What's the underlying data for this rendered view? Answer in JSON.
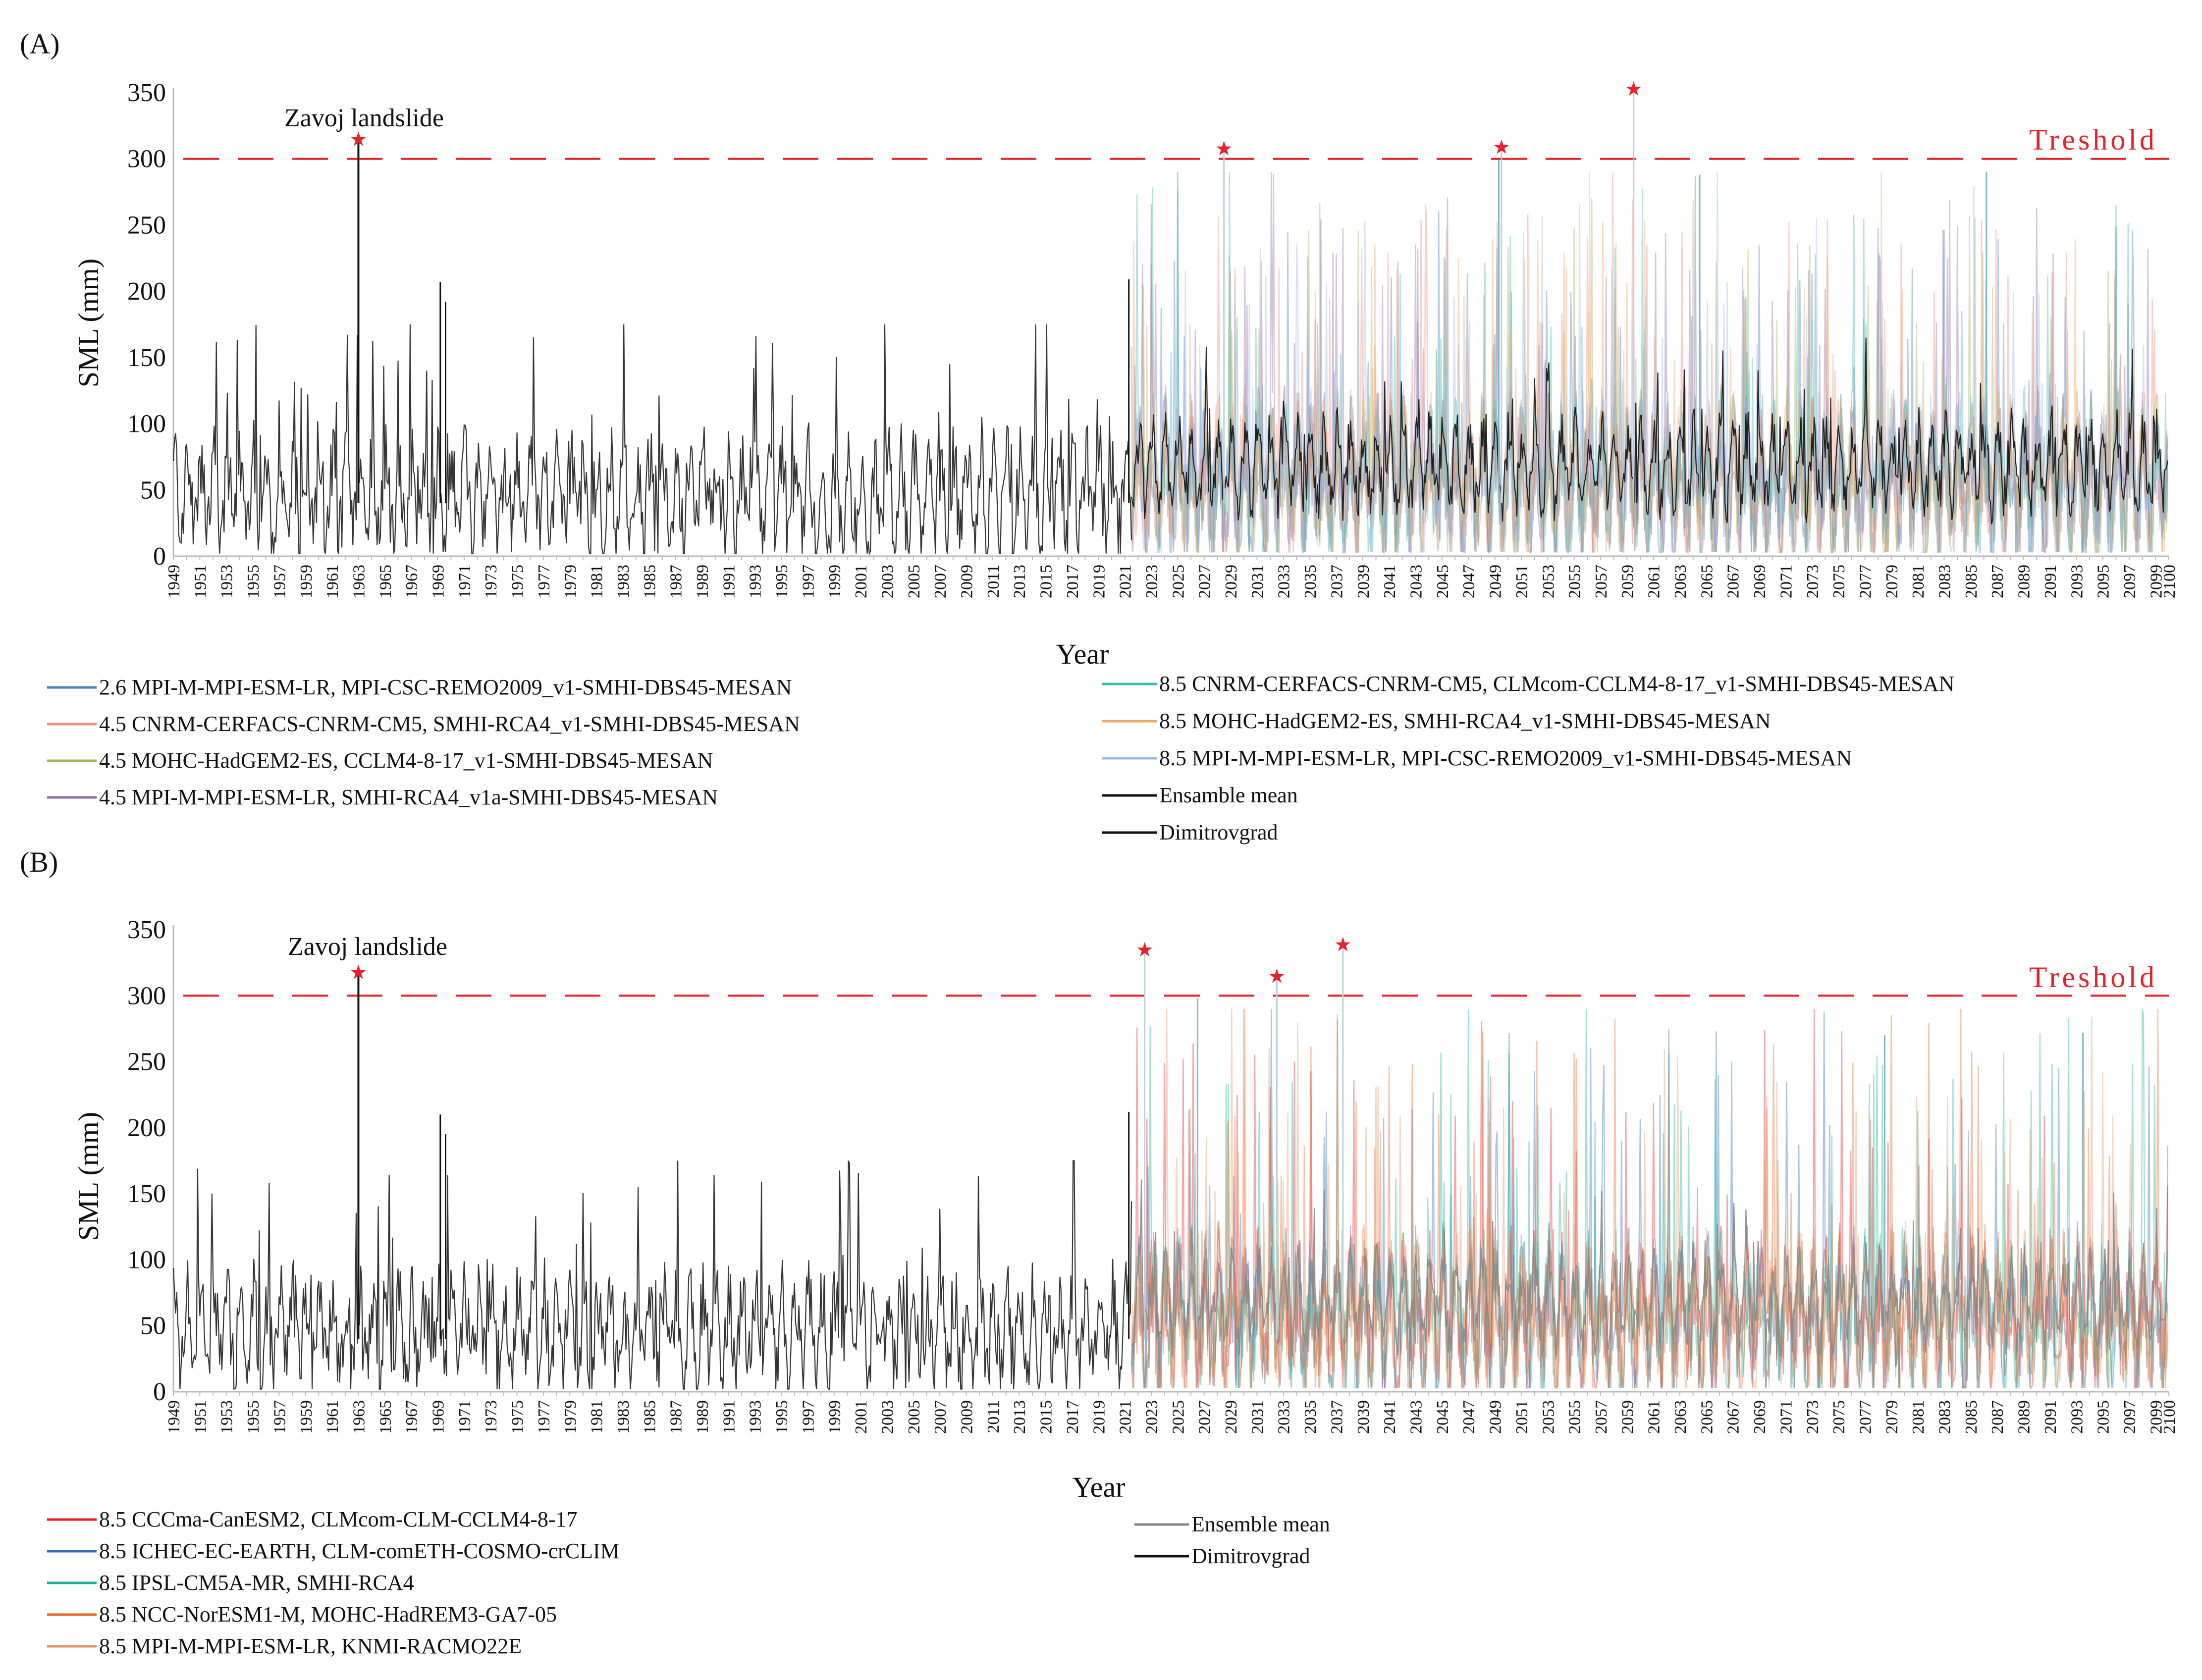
{
  "chart_data": [
    {
      "panel": "(A)",
      "type": "line",
      "ylabel": "SML (mm)",
      "xlabel": "Year",
      "ylim": [
        0,
        350
      ],
      "yticks": [
        0,
        50,
        100,
        150,
        200,
        250,
        300,
        350
      ],
      "xrange": [
        1949,
        2100
      ],
      "xtick_start": 1949,
      "xtick_step": 2,
      "xtick_last": 2100,
      "threshold": {
        "value": 300,
        "label": "Treshold",
        "color": "#e8202a"
      },
      "annotation": {
        "text": "Zavoj landslide"
      },
      "peaks": [
        {
          "year": 1963,
          "value": 315
        },
        {
          "year": 2028.5,
          "value": 308
        },
        {
          "year": 2049.5,
          "value": 309
        },
        {
          "year": 2059.5,
          "value": 353
        }
      ],
      "spikes": [
        {
          "year": 1969.2,
          "value": 207
        },
        {
          "year": 1969.6,
          "value": 192
        },
        {
          "year": 2021.3,
          "value": 209
        },
        {
          "year": 2049.3,
          "value": 300
        },
        {
          "year": 2064.5,
          "value": 288
        },
        {
          "year": 2086.2,
          "value": 290
        }
      ],
      "projection_start": 2021.5,
      "series": [
        {
          "name": "2.6 MPI-M-MPI-ESM-LR, MPI-CSC-REMO2009_v1-SMHI-DBS45-MESAN",
          "color": "#4a7fc1",
          "role": "scenario"
        },
        {
          "name": "4.5 CNRM-CERFACS-CNRM-CM5, SMHI-RCA4_v1-SMHI-DBS45-MESAN",
          "color": "#ef8a80",
          "role": "scenario"
        },
        {
          "name": "4.5 MOHC-HadGEM2-ES, CCLM4-8-17_v1-SMHI-DBS45-MESAN",
          "color": "#a8b45a",
          "role": "scenario"
        },
        {
          "name": "4.5 MPI-M-MPI-ESM-LR, SMHI-RCA4_v1a-SMHI-DBS45-MESAN",
          "color": "#8e6fa8",
          "role": "scenario"
        },
        {
          "name": "8.5 CNRM-CERFACS-CNRM-CM5, CLMcom-CCLM4-8-17_v1-SMHI-DBS45-MESAN",
          "color": "#3fb8b0",
          "role": "scenario"
        },
        {
          "name": "8.5 MOHC-HadGEM2-ES, SMHI-RCA4_v1-SMHI-DBS45-MESAN",
          "color": "#f0a46a",
          "role": "scenario"
        },
        {
          "name": "8.5 MPI-M-MPI-ESM-LR, MPI-CSC-REMO2009_v1-SMHI-DBS45-MESAN",
          "color": "#9fb7e6",
          "role": "scenario"
        },
        {
          "name": "Ensamble mean",
          "color": "#111111",
          "role": "mean"
        },
        {
          "name": "Dimitrovgrad",
          "color": "#111111",
          "role": "observed"
        }
      ],
      "legend_left": [
        0,
        1,
        2,
        3
      ],
      "legend_right": [
        4,
        5,
        6,
        7,
        8
      ]
    },
    {
      "panel": "(B)",
      "type": "line",
      "ylabel": "SML (mm)",
      "xlabel": "Year",
      "ylim": [
        0,
        350
      ],
      "yticks": [
        0,
        50,
        100,
        150,
        200,
        250,
        300,
        350
      ],
      "xrange": [
        1949,
        2100
      ],
      "xtick_start": 1949,
      "xtick_step": 2,
      "xtick_last": 2100,
      "threshold": {
        "value": 300,
        "label": "Treshold",
        "color": "#e8202a"
      },
      "annotation": {
        "text": "Zavoj landslide"
      },
      "peaks": [
        {
          "year": 1963,
          "value": 318
        },
        {
          "year": 2022.5,
          "value": 335
        },
        {
          "year": 2032.5,
          "value": 315
        },
        {
          "year": 2037.5,
          "value": 339
        }
      ],
      "spikes": [
        {
          "year": 1969.2,
          "value": 210
        },
        {
          "year": 1969.6,
          "value": 195
        },
        {
          "year": 2021.3,
          "value": 212
        },
        {
          "year": 2026.5,
          "value": 298
        },
        {
          "year": 2078.5,
          "value": 270
        },
        {
          "year": 2093.5,
          "value": 272
        }
      ],
      "projection_start": 2021.5,
      "series": [
        {
          "name": "8.5 CCCma-CanESM2, CLMcom-CLM-CCLM4-8-17",
          "color": "#e8202a",
          "role": "scenario"
        },
        {
          "name": "8.5 ICHEC-EC-EARTH, CLM-comETH-COSMO-crCLIM",
          "color": "#2e6fb8",
          "role": "scenario"
        },
        {
          "name": "8.5 IPSL-CM5A-MR, SMHI-RCA4",
          "color": "#1ab394",
          "role": "scenario"
        },
        {
          "name": "8.5 NCC-NorESM1-M, MOHC-HadREM3-GA7-05",
          "color": "#e86a2a",
          "role": "scenario"
        },
        {
          "name": "8.5 MPI-M-MPI-ESM-LR, KNMI-RACMO22E",
          "color": "#e0986a",
          "role": "scenario"
        },
        {
          "name": "Ensemble mean",
          "color": "#888888",
          "role": "mean"
        },
        {
          "name": "Dimitrovgrad",
          "color": "#111111",
          "role": "observed"
        }
      ],
      "legend_left": [
        0,
        1,
        2,
        3,
        4
      ],
      "legend_right": [
        5,
        6
      ]
    }
  ]
}
